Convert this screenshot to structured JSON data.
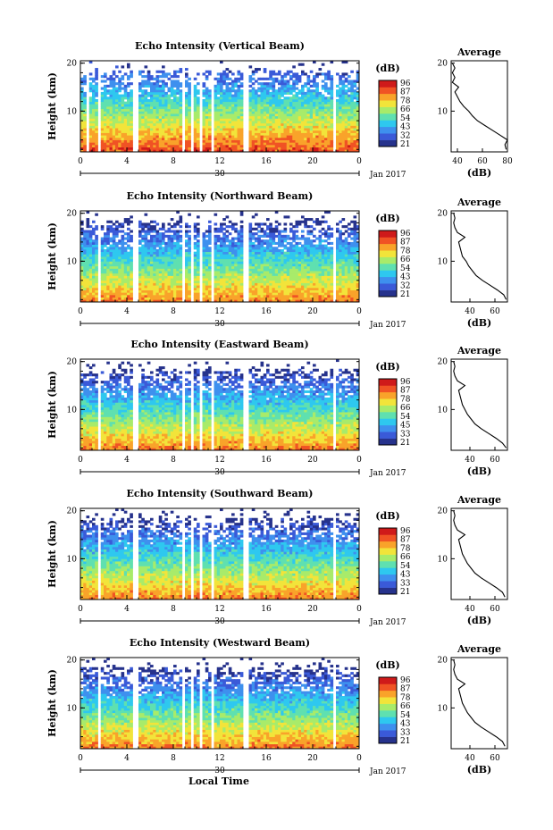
{
  "figure": {
    "x_axis_label": "Local Time",
    "colorbar_unit": "(dB)",
    "colorbar_ticks": [
      "96",
      "87",
      "78",
      "66",
      "54",
      "43",
      "32",
      "21"
    ],
    "colors": {
      "scale": [
        "#26328c",
        "#3a5ad8",
        "#3e90ee",
        "#2ec8ef",
        "#5fe0b0",
        "#a8eb6a",
        "#f2e43a",
        "#f9a32a",
        "#f05324",
        "#cf1a1a"
      ],
      "gap": "#ffffff",
      "line": "#000000"
    }
  },
  "chart_data": [
    {
      "type": "heatmap",
      "title": "Echo Intensity (Vertical Beam)",
      "ylabel": "Height (km)",
      "xlabel": "Local Time",
      "x_ticks": [
        "0",
        "4",
        "8",
        "12",
        "16",
        "20",
        "0"
      ],
      "y_ticks": [
        "20",
        "10"
      ],
      "date_center": "30",
      "date_right": "Jan 2017",
      "xlim": [
        0,
        24
      ],
      "ylim": [
        1.5,
        20.5
      ],
      "colorbar": {
        "unit": "(dB)",
        "ticks": [
          "96",
          "87",
          "78",
          "66",
          "54",
          "43",
          "32",
          "21"
        ],
        "range": [
          21,
          96
        ]
      },
      "gaps_hours": [
        [
          0.6,
          0.85
        ],
        [
          1.6,
          1.8
        ],
        [
          4.6,
          5.0
        ],
        [
          8.7,
          9.0
        ],
        [
          9.6,
          9.8
        ],
        [
          10.3,
          10.5
        ],
        [
          11.3,
          11.6
        ],
        [
          14.1,
          14.4
        ],
        [
          19.9,
          20.1
        ],
        [
          21.7,
          21.9
        ]
      ],
      "average_profile": {
        "title": "Average",
        "xlabel": "(dB)",
        "x_ticks": [
          "40",
          "60",
          "80"
        ],
        "y_ticks": [
          "20",
          "10"
        ],
        "xlim": [
          35,
          80
        ],
        "ylim": [
          1.5,
          20.5
        ],
        "height_km": [
          2,
          3,
          4,
          5,
          6,
          7,
          8,
          9,
          10,
          11,
          12,
          13,
          14,
          15,
          16,
          17,
          18,
          19,
          20
        ],
        "db": [
          79,
          78,
          80,
          74,
          68,
          62,
          56,
          52,
          49,
          45,
          42,
          40,
          38,
          41,
          36,
          38,
          36,
          38,
          36
        ]
      }
    },
    {
      "type": "heatmap",
      "title": "Echo Intensity (Northward Beam)",
      "ylabel": "Height (km)",
      "xlabel": "Local Time",
      "x_ticks": [
        "0",
        "4",
        "8",
        "12",
        "16",
        "20",
        "0"
      ],
      "y_ticks": [
        "20",
        "10"
      ],
      "date_center": "30",
      "date_right": "Jan 2017",
      "xlim": [
        0,
        24
      ],
      "ylim": [
        1.5,
        20.5
      ],
      "colorbar": {
        "unit": "(dB)",
        "ticks": [
          "96",
          "87",
          "78",
          "66",
          "54",
          "43",
          "32",
          "21"
        ],
        "range": [
          21,
          96
        ]
      },
      "gaps_hours": [
        [
          1.6,
          1.8
        ],
        [
          4.6,
          5.0
        ],
        [
          8.7,
          9.0
        ],
        [
          9.6,
          9.8
        ],
        [
          10.3,
          10.5
        ],
        [
          11.3,
          11.6
        ],
        [
          14.1,
          14.4
        ],
        [
          19.9,
          20.1
        ],
        [
          21.7,
          21.9
        ]
      ],
      "average_profile": {
        "title": "Average",
        "xlabel": "(dB)",
        "x_ticks": [
          "40",
          "60"
        ],
        "y_ticks": [
          "20",
          "10"
        ],
        "xlim": [
          25,
          70
        ],
        "ylim": [
          1.5,
          20.5
        ],
        "height_km": [
          2,
          3,
          4,
          5,
          6,
          7,
          8,
          9,
          10,
          11,
          12,
          13,
          14,
          15,
          16,
          17,
          18,
          19,
          20
        ],
        "db": [
          69,
          67,
          62,
          56,
          50,
          45,
          42,
          39,
          37,
          34,
          33,
          32,
          31,
          36,
          30,
          28,
          27,
          28,
          27
        ]
      }
    },
    {
      "type": "heatmap",
      "title": "Echo Intensity (Eastward Beam)",
      "ylabel": "Height (km)",
      "xlabel": "Local Time",
      "x_ticks": [
        "0",
        "4",
        "8",
        "12",
        "16",
        "20",
        "0"
      ],
      "y_ticks": [
        "20",
        "10"
      ],
      "date_center": "30",
      "date_right": "Jan 2017",
      "xlim": [
        0,
        24
      ],
      "ylim": [
        1.5,
        20.5
      ],
      "colorbar": {
        "unit": "(dB)",
        "ticks": [
          "96",
          "87",
          "78",
          "66",
          "54",
          "45",
          "33",
          "21"
        ],
        "range": [
          21,
          96
        ]
      },
      "gaps_hours": [
        [
          1.6,
          1.8
        ],
        [
          4.6,
          5.0
        ],
        [
          8.7,
          9.0
        ],
        [
          9.6,
          9.8
        ],
        [
          10.3,
          10.5
        ],
        [
          11.3,
          11.6
        ],
        [
          14.1,
          14.4
        ],
        [
          19.9,
          20.1
        ],
        [
          21.7,
          21.9
        ]
      ],
      "average_profile": {
        "title": "Average",
        "xlabel": "(dB)",
        "x_ticks": [
          "40",
          "60"
        ],
        "y_ticks": [
          "20",
          "10"
        ],
        "xlim": [
          25,
          70
        ],
        "ylim": [
          1.5,
          20.5
        ],
        "height_km": [
          2,
          3,
          4,
          5,
          6,
          7,
          8,
          9,
          10,
          11,
          12,
          13,
          14,
          15,
          16,
          17,
          18,
          19,
          20
        ],
        "db": [
          69,
          66,
          61,
          55,
          49,
          44,
          41,
          38,
          36,
          34,
          33,
          32,
          31,
          36,
          30,
          28,
          27,
          28,
          27
        ]
      }
    },
    {
      "type": "heatmap",
      "title": "Echo Intensity (Southward Beam)",
      "ylabel": "Height (km)",
      "xlabel": "Local Time",
      "x_ticks": [
        "0",
        "4",
        "8",
        "12",
        "16",
        "20",
        "0"
      ],
      "y_ticks": [
        "20",
        "10"
      ],
      "date_center": "30",
      "date_right": "Jan 2017",
      "xlim": [
        0,
        24
      ],
      "ylim": [
        1.5,
        20.5
      ],
      "colorbar": {
        "unit": "(dB)",
        "ticks": [
          "96",
          "87",
          "78",
          "66",
          "54",
          "43",
          "33",
          "21"
        ],
        "range": [
          21,
          96
        ]
      },
      "gaps_hours": [
        [
          1.6,
          1.8
        ],
        [
          4.6,
          5.0
        ],
        [
          8.7,
          9.0
        ],
        [
          9.6,
          9.8
        ],
        [
          10.3,
          10.5
        ],
        [
          11.3,
          11.6
        ],
        [
          14.1,
          14.4
        ],
        [
          19.9,
          20.1
        ],
        [
          21.7,
          21.9
        ]
      ],
      "average_profile": {
        "title": "Average",
        "xlabel": "(dB)",
        "x_ticks": [
          "40",
          "60"
        ],
        "y_ticks": [
          "20",
          "10"
        ],
        "xlim": [
          25,
          70
        ],
        "ylim": [
          1.5,
          20.5
        ],
        "height_km": [
          2,
          3,
          4,
          5,
          6,
          7,
          8,
          9,
          10,
          11,
          12,
          13,
          14,
          15,
          16,
          17,
          18,
          19,
          20
        ],
        "db": [
          68,
          66,
          61,
          55,
          49,
          44,
          41,
          38,
          36,
          34,
          33,
          32,
          31,
          36,
          30,
          28,
          27,
          28,
          27
        ]
      }
    },
    {
      "type": "heatmap",
      "title": "Echo Intensity (Westward Beam)",
      "ylabel": "Height (km)",
      "xlabel": "Local Time",
      "x_ticks": [
        "0",
        "4",
        "8",
        "12",
        "16",
        "20",
        "0"
      ],
      "y_ticks": [
        "20",
        "10"
      ],
      "date_center": "30",
      "date_right": "Jan 2017",
      "xlim": [
        0,
        24
      ],
      "ylim": [
        1.5,
        20.5
      ],
      "colorbar": {
        "unit": "(dB)",
        "ticks": [
          "96",
          "87",
          "78",
          "66",
          "54",
          "43",
          "33",
          "21"
        ],
        "range": [
          21,
          96
        ]
      },
      "gaps_hours": [
        [
          1.6,
          1.8
        ],
        [
          4.6,
          5.0
        ],
        [
          8.7,
          9.0
        ],
        [
          9.6,
          9.8
        ],
        [
          10.3,
          10.5
        ],
        [
          11.3,
          11.6
        ],
        [
          14.1,
          14.4
        ],
        [
          19.9,
          20.1
        ],
        [
          21.7,
          21.9
        ]
      ],
      "average_profile": {
        "title": "Average",
        "xlabel": "(dB)",
        "x_ticks": [
          "40",
          "60"
        ],
        "y_ticks": [
          "20",
          "10"
        ],
        "xlim": [
          25,
          70
        ],
        "ylim": [
          1.5,
          20.5
        ],
        "height_km": [
          2,
          3,
          4,
          5,
          6,
          7,
          8,
          9,
          10,
          11,
          12,
          13,
          14,
          15,
          16,
          17,
          18,
          19,
          20
        ],
        "db": [
          68,
          66,
          61,
          55,
          49,
          44,
          41,
          38,
          36,
          34,
          33,
          32,
          31,
          36,
          30,
          28,
          27,
          28,
          27
        ]
      }
    }
  ]
}
